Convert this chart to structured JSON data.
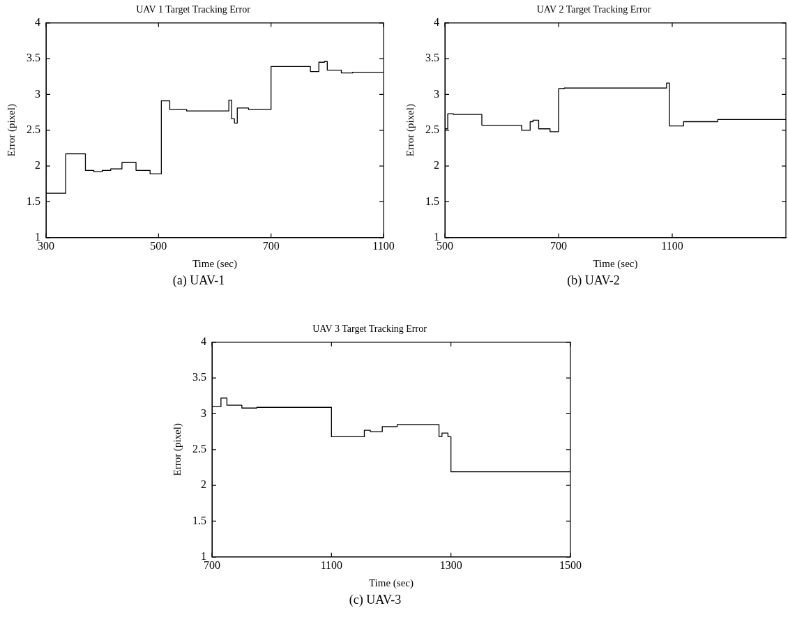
{
  "chart_data": [
    {
      "type": "step",
      "title": "UAV 1 Target Tracking Error",
      "xlabel": "Time (sec)",
      "ylabel": "Error (pixel)",
      "annotations": [
        "(a) UAV-1"
      ],
      "grid": false,
      "legend": false,
      "marker": "none",
      "line_style": "solid",
      "categories": [
        "300",
        null,
        null,
        null,
        null,
        null,
        null,
        null,
        null,
        null,
        null,
        null,
        null,
        null,
        null,
        null,
        null,
        null,
        null,
        null,
        null,
        null,
        null,
        null,
        null,
        null,
        null,
        null,
        null,
        null,
        null,
        null,
        null,
        null,
        null,
        null,
        null,
        null,
        null,
        null,
        "500",
        null,
        null,
        null,
        null,
        null,
        null,
        null,
        null,
        null,
        null,
        null,
        null,
        null,
        null,
        null,
        null,
        null,
        null,
        null,
        null,
        null,
        null,
        null,
        null,
        null,
        null,
        null,
        null,
        null,
        null,
        null,
        null,
        null,
        null,
        null,
        null,
        null,
        null,
        null,
        "700",
        null,
        null,
        null,
        null,
        null,
        null,
        null,
        null,
        null,
        null,
        null,
        null,
        null,
        null,
        null,
        null,
        null,
        null,
        null,
        null,
        null,
        null,
        null,
        null,
        null,
        null,
        null,
        null,
        null,
        null,
        null,
        null,
        null,
        null,
        null,
        null,
        null,
        null,
        null,
        "1100"
      ],
      "ylim": [
        1,
        4
      ],
      "yticks": [
        1,
        1.5,
        2,
        2.5,
        3,
        3.5,
        4
      ],
      "series": [
        {
          "color": "#000000",
          "values": [
            1.62,
            1.62,
            1.62,
            1.62,
            1.62,
            1.62,
            1.62,
            2.17,
            2.17,
            2.17,
            2.17,
            2.17,
            2.17,
            2.17,
            1.94,
            1.94,
            1.94,
            1.92,
            1.92,
            1.92,
            1.94,
            1.94,
            1.94,
            1.96,
            1.96,
            1.96,
            1.96,
            2.05,
            2.05,
            2.05,
            2.05,
            2.05,
            1.94,
            1.94,
            1.94,
            1.94,
            1.94,
            1.89,
            1.89,
            1.89,
            1.89,
            2.91,
            2.91,
            2.91,
            2.79,
            2.79,
            2.79,
            2.79,
            2.79,
            2.79,
            2.77,
            2.77,
            2.77,
            2.77,
            2.77,
            2.77,
            2.77,
            2.77,
            2.77,
            2.77,
            2.77,
            2.77,
            2.77,
            2.77,
            2.77,
            2.92,
            2.66,
            2.6,
            2.81,
            2.81,
            2.81,
            2.81,
            2.79,
            2.79,
            2.79,
            2.79,
            2.79,
            2.79,
            2.79,
            2.79,
            3.39,
            3.39,
            3.39,
            3.39,
            3.39,
            3.39,
            3.39,
            3.39,
            3.39,
            3.39,
            3.39,
            3.39,
            3.39,
            3.39,
            3.32,
            3.32,
            3.32,
            3.45,
            3.45,
            3.46,
            3.34,
            3.34,
            3.34,
            3.34,
            3.34,
            3.3,
            3.3,
            3.3,
            3.3,
            3.31,
            3.31,
            3.31,
            3.31,
            3.31,
            3.31,
            3.31,
            3.31,
            3.31,
            3.31,
            3.31,
            3.31
          ]
        }
      ]
    },
    {
      "type": "step",
      "title": "UAV 2 Target Tracking Error",
      "xlabel": "Time (sec)",
      "ylabel": "Error (pixel)",
      "annotations": [
        "(b) UAV-2"
      ],
      "grid": false,
      "legend": false,
      "marker": "none",
      "line_style": "solid",
      "categories": [
        "500",
        null,
        null,
        null,
        null,
        null,
        null,
        null,
        null,
        null,
        null,
        null,
        null,
        null,
        null,
        null,
        null,
        null,
        null,
        null,
        null,
        null,
        null,
        null,
        null,
        null,
        null,
        null,
        null,
        null,
        null,
        null,
        null,
        null,
        null,
        null,
        null,
        null,
        null,
        null,
        "700",
        null,
        null,
        null,
        null,
        null,
        null,
        null,
        null,
        null,
        null,
        null,
        null,
        null,
        null,
        null,
        null,
        null,
        null,
        null,
        null,
        null,
        null,
        null,
        null,
        null,
        null,
        null,
        null,
        null,
        null,
        null,
        null,
        null,
        null,
        null,
        null,
        null,
        null,
        null,
        "1100",
        null,
        null,
        null,
        null,
        null,
        null,
        null,
        null,
        null,
        null,
        null,
        null,
        null,
        null,
        null,
        null,
        null,
        null,
        null,
        null,
        null,
        null,
        null,
        null,
        null,
        null,
        null,
        null,
        null,
        null,
        null,
        null,
        null,
        null,
        null,
        null,
        null,
        null,
        null,
        null
      ],
      "ylim": [
        1,
        4
      ],
      "yticks": [
        1,
        1.5,
        2,
        2.5,
        3,
        3.5,
        4
      ],
      "series": [
        {
          "color": "#000000",
          "values": [
            2.52,
            2.73,
            2.73,
            2.72,
            2.72,
            2.72,
            2.72,
            2.72,
            2.72,
            2.72,
            2.72,
            2.72,
            2.72,
            2.57,
            2.57,
            2.57,
            2.57,
            2.57,
            2.57,
            2.57,
            2.57,
            2.57,
            2.57,
            2.57,
            2.57,
            2.57,
            2.57,
            2.5,
            2.5,
            2.5,
            2.62,
            2.64,
            2.64,
            2.52,
            2.52,
            2.52,
            2.52,
            2.48,
            2.48,
            2.48,
            3.08,
            3.08,
            3.09,
            3.09,
            3.09,
            3.09,
            3.09,
            3.09,
            3.09,
            3.09,
            3.09,
            3.09,
            3.09,
            3.09,
            3.09,
            3.09,
            3.09,
            3.09,
            3.09,
            3.09,
            3.09,
            3.09,
            3.09,
            3.09,
            3.09,
            3.09,
            3.09,
            3.09,
            3.09,
            3.09,
            3.09,
            3.09,
            3.09,
            3.09,
            3.09,
            3.09,
            3.09,
            3.09,
            3.16,
            2.56,
            2.56,
            2.56,
            2.56,
            2.56,
            2.62,
            2.62,
            2.62,
            2.62,
            2.62,
            2.62,
            2.62,
            2.62,
            2.62,
            2.62,
            2.62,
            2.62,
            2.65,
            2.65,
            2.65,
            2.65,
            2.65,
            2.65,
            2.65,
            2.65,
            2.65,
            2.65,
            2.65,
            2.65,
            2.65,
            2.65,
            2.65,
            2.65,
            2.65,
            2.65,
            2.65,
            2.65,
            2.65,
            2.65,
            2.65,
            2.65,
            2.65
          ]
        }
      ]
    },
    {
      "type": "step",
      "title": "UAV 3 Target Tracking Error",
      "xlabel": "Time (sec)",
      "ylabel": "Error (pixel)",
      "annotations": [
        "(c) UAV-3"
      ],
      "grid": false,
      "legend": false,
      "marker": "none",
      "line_style": "solid",
      "categories": [
        "700",
        null,
        null,
        null,
        null,
        null,
        null,
        null,
        null,
        null,
        null,
        null,
        null,
        null,
        null,
        null,
        null,
        null,
        null,
        null,
        null,
        null,
        null,
        null,
        null,
        null,
        null,
        null,
        null,
        null,
        null,
        null,
        null,
        null,
        null,
        null,
        null,
        null,
        null,
        null,
        "1100",
        null,
        null,
        null,
        null,
        null,
        null,
        null,
        null,
        null,
        null,
        null,
        null,
        null,
        null,
        null,
        null,
        null,
        null,
        null,
        null,
        null,
        null,
        null,
        null,
        null,
        null,
        null,
        null,
        null,
        null,
        null,
        null,
        null,
        null,
        null,
        null,
        null,
        null,
        null,
        "1300",
        null,
        null,
        null,
        null,
        null,
        null,
        null,
        null,
        null,
        null,
        null,
        null,
        null,
        null,
        null,
        null,
        null,
        null,
        null,
        null,
        null,
        null,
        null,
        null,
        null,
        null,
        null,
        null,
        null,
        null,
        null,
        null,
        null,
        null,
        null,
        null,
        null,
        null,
        null,
        "1500"
      ],
      "ylim": [
        1,
        4
      ],
      "yticks": [
        1,
        1.5,
        2,
        2.5,
        3,
        3.5,
        4
      ],
      "series": [
        {
          "color": "#000000",
          "values": [
            3.1,
            3.1,
            3.1,
            3.22,
            3.22,
            3.12,
            3.12,
            3.12,
            3.12,
            3.12,
            3.08,
            3.08,
            3.08,
            3.08,
            3.08,
            3.09,
            3.09,
            3.09,
            3.09,
            3.09,
            3.09,
            3.09,
            3.09,
            3.09,
            3.09,
            3.09,
            3.09,
            3.09,
            3.09,
            3.09,
            3.09,
            3.09,
            3.09,
            3.09,
            3.09,
            3.09,
            3.09,
            3.09,
            3.09,
            3.09,
            2.68,
            2.68,
            2.68,
            2.68,
            2.68,
            2.68,
            2.68,
            2.68,
            2.68,
            2.68,
            2.68,
            2.77,
            2.77,
            2.75,
            2.75,
            2.75,
            2.75,
            2.82,
            2.82,
            2.82,
            2.82,
            2.82,
            2.85,
            2.85,
            2.85,
            2.85,
            2.85,
            2.85,
            2.85,
            2.85,
            2.85,
            2.85,
            2.85,
            2.85,
            2.85,
            2.85,
            2.68,
            2.73,
            2.73,
            2.68,
            2.19,
            2.19,
            2.19,
            2.19,
            2.19,
            2.19,
            2.19,
            2.19,
            2.19,
            2.19,
            2.19,
            2.19,
            2.19,
            2.19,
            2.19,
            2.19,
            2.19,
            2.19,
            2.19,
            2.19,
            2.19,
            2.19,
            2.19,
            2.19,
            2.19,
            2.19,
            2.19,
            2.19,
            2.19,
            2.19,
            2.19,
            2.19,
            2.19,
            2.19,
            2.19,
            2.19,
            2.19,
            2.19,
            2.19,
            2.19,
            2.19
          ]
        }
      ]
    }
  ]
}
